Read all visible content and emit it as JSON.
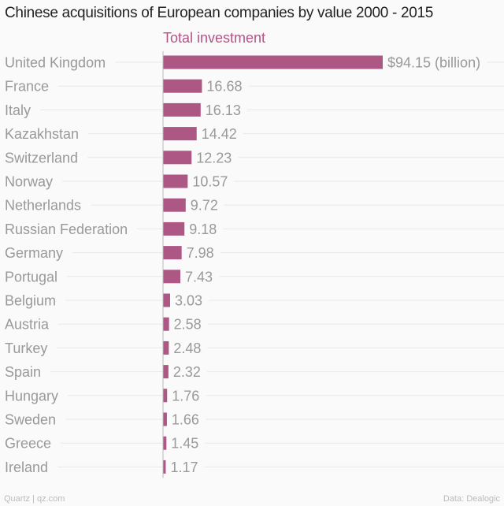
{
  "chart_data": {
    "type": "bar",
    "orientation": "horizontal",
    "title": "Chinese acquisitions of European companies by value 2000 - 2015",
    "series": [
      {
        "name": "Total investment",
        "values": [
          94.15,
          16.68,
          16.13,
          14.42,
          12.23,
          10.57,
          9.72,
          9.18,
          7.98,
          7.43,
          3.03,
          2.58,
          2.48,
          2.32,
          1.76,
          1.66,
          1.45,
          1.17
        ],
        "labels": [
          "$94.15 (billion)",
          "16.68",
          "16.13",
          "14.42",
          "12.23",
          "10.57",
          "9.72",
          "9.18",
          "7.98",
          "7.43",
          "3.03",
          "2.58",
          "2.48",
          "2.32",
          "1.76",
          "1.66",
          "1.45",
          "1.17"
        ]
      }
    ],
    "categories": [
      "United Kingdom",
      "France",
      "Italy",
      "Kazakhstan",
      "Switzerland",
      "Norway",
      "Netherlands",
      "Russian Federation",
      "Germany",
      "Portugal",
      "Belgium",
      "Austria",
      "Turkey",
      "Spain",
      "Hungary",
      "Sweden",
      "Greece",
      "Ireland"
    ],
    "xlim": [
      0,
      94.15
    ],
    "grid": true,
    "colors": {
      "bar": "#ad5785",
      "series_label": "#b15584",
      "category_text": "#999999",
      "gridline": "#e8e8e8"
    }
  },
  "footer": {
    "source_left": "Quartz | qz.com",
    "source_right": "Data: Dealogic"
  }
}
